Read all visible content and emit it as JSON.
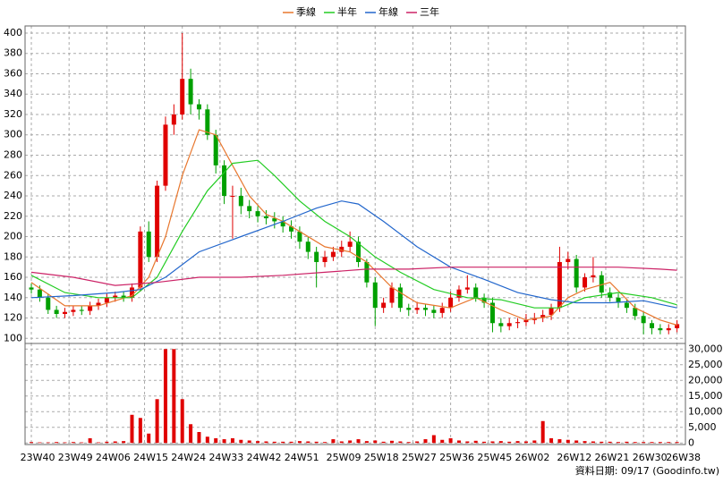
{
  "chart_data": [
    {
      "type": "candlestick",
      "up_color": "#e00000",
      "down_color": "#00a000",
      "xlim": [
        -1.5,
        156
      ],
      "ylim": [
        95,
        407
      ],
      "xticks": [
        0,
        9,
        18,
        27,
        36,
        45,
        54,
        63,
        73,
        82,
        91,
        100,
        109,
        118,
        128,
        137,
        146,
        154
      ],
      "yticks": [
        100,
        120,
        140,
        160,
        180,
        200,
        220,
        240,
        260,
        280,
        300,
        320,
        340,
        360,
        380,
        400
      ],
      "grid": true,
      "legend": "top",
      "x": [
        0,
        2,
        4,
        6,
        8,
        10,
        12,
        14,
        16,
        18,
        20,
        22,
        24,
        26,
        28,
        30,
        32,
        34,
        36,
        38,
        40,
        42,
        44,
        46,
        48,
        50,
        52,
        54,
        56,
        58,
        60,
        62,
        64,
        66,
        68,
        70,
        72,
        74,
        76,
        78,
        80,
        82,
        84,
        86,
        88,
        90,
        92,
        94,
        96,
        98,
        100,
        102,
        104,
        106,
        108,
        110,
        112,
        114,
        116,
        118,
        120,
        122,
        124,
        126,
        128,
        130,
        132,
        134,
        136,
        138,
        140,
        142,
        144,
        146,
        148,
        150,
        152,
        154
      ],
      "open": [
        150,
        148,
        140,
        128,
        124,
        126,
        128,
        127,
        132,
        135,
        140,
        142,
        140,
        150,
        205,
        180,
        250,
        310,
        320,
        355,
        330,
        325,
        300,
        270,
        240,
        240,
        230,
        225,
        220,
        218,
        215,
        210,
        205,
        195,
        185,
        175,
        180,
        185,
        190,
        195,
        175,
        155,
        130,
        135,
        150,
        130,
        128,
        130,
        128,
        125,
        130,
        140,
        148,
        150,
        140,
        135,
        115,
        112,
        115,
        116,
        118,
        120,
        123,
        130,
        175,
        178,
        150,
        160,
        162,
        145,
        140,
        135,
        130,
        122,
        115,
        110,
        108,
        110
      ],
      "high": [
        154,
        152,
        144,
        132,
        130,
        132,
        132,
        136,
        139,
        144,
        146,
        146,
        154,
        210,
        215,
        255,
        318,
        330,
        400,
        365,
        335,
        330,
        305,
        275,
        250,
        248,
        236,
        230,
        226,
        224,
        220,
        216,
        210,
        200,
        190,
        186,
        190,
        196,
        205,
        200,
        178,
        160,
        140,
        155,
        154,
        134,
        136,
        134,
        132,
        135,
        146,
        152,
        162,
        154,
        144,
        140,
        120,
        120,
        120,
        124,
        125,
        128,
        134,
        190,
        185,
        182,
        164,
        180,
        166,
        150,
        144,
        138,
        134,
        126,
        118,
        114,
        114,
        118
      ],
      "low": [
        144,
        136,
        124,
        120,
        120,
        122,
        123,
        123,
        128,
        131,
        136,
        136,
        136,
        146,
        175,
        175,
        245,
        300,
        315,
        320,
        315,
        295,
        262,
        232,
        198,
        222,
        218,
        214,
        212,
        208,
        204,
        198,
        188,
        178,
        150,
        170,
        176,
        180,
        185,
        170,
        150,
        112,
        125,
        130,
        126,
        122,
        124,
        122,
        120,
        120,
        126,
        136,
        144,
        136,
        130,
        106,
        106,
        108,
        110,
        112,
        114,
        116,
        118,
        126,
        168,
        145,
        146,
        155,
        140,
        136,
        130,
        125,
        118,
        104,
        104,
        104,
        104,
        106
      ],
      "close": [
        148,
        140,
        128,
        124,
        126,
        128,
        127,
        132,
        135,
        140,
        142,
        140,
        150,
        205,
        180,
        250,
        310,
        320,
        355,
        330,
        325,
        300,
        270,
        240,
        240,
        230,
        225,
        220,
        218,
        215,
        210,
        205,
        195,
        185,
        175,
        180,
        185,
        190,
        195,
        175,
        155,
        130,
        135,
        150,
        130,
        128,
        130,
        128,
        125,
        130,
        140,
        148,
        150,
        140,
        135,
        115,
        112,
        115,
        116,
        118,
        120,
        123,
        130,
        175,
        178,
        150,
        160,
        162,
        145,
        140,
        135,
        130,
        122,
        115,
        110,
        108,
        110,
        114
      ],
      "series": [
        {
          "name": "季線",
          "color": "#e8772e",
          "x": [
            0,
            8,
            16,
            24,
            28,
            32,
            36,
            40,
            44,
            48,
            52,
            56,
            60,
            64,
            70,
            76,
            80,
            86,
            92,
            100,
            106,
            112,
            118,
            124,
            128,
            132,
            138,
            144,
            150,
            154
          ],
          "values": [
            155,
            132,
            132,
            142,
            160,
            200,
            260,
            305,
            300,
            270,
            240,
            222,
            215,
            205,
            190,
            185,
            175,
            150,
            135,
            130,
            140,
            128,
            118,
            122,
            140,
            148,
            155,
            130,
            118,
            113
          ]
        },
        {
          "name": "半年",
          "color": "#22cc22",
          "x": [
            0,
            8,
            16,
            24,
            30,
            36,
            42,
            48,
            54,
            58,
            64,
            70,
            76,
            82,
            88,
            96,
            104,
            112,
            120,
            126,
            132,
            140,
            148,
            154
          ],
          "values": [
            162,
            145,
            140,
            140,
            160,
            205,
            245,
            272,
            275,
            260,
            235,
            215,
            200,
            180,
            165,
            148,
            140,
            138,
            130,
            130,
            140,
            145,
            140,
            133
          ]
        },
        {
          "name": "年線",
          "color": "#2266cc",
          "x": [
            0,
            10,
            20,
            26,
            32,
            40,
            50,
            60,
            68,
            74,
            78,
            84,
            92,
            100,
            108,
            116,
            124,
            130,
            138,
            146,
            154
          ],
          "values": [
            140,
            142,
            145,
            148,
            160,
            185,
            200,
            215,
            228,
            235,
            232,
            215,
            190,
            170,
            158,
            145,
            138,
            135,
            135,
            137,
            130
          ]
        },
        {
          "name": "三年",
          "color": "#cc2266",
          "x": [
            0,
            10,
            20,
            30,
            40,
            50,
            60,
            70,
            80,
            90,
            100,
            110,
            120,
            130,
            140,
            150,
            154
          ],
          "values": [
            165,
            160,
            152,
            155,
            160,
            160,
            162,
            165,
            168,
            168,
            170,
            170,
            170,
            170,
            170,
            168,
            167
          ]
        }
      ]
    },
    {
      "type": "bar",
      "color": "#e00000",
      "xlim": [
        -1.5,
        156
      ],
      "ylim": [
        -500,
        31800
      ],
      "xticks": [
        {
          "value": 0,
          "label": "23W40"
        },
        {
          "value": 9,
          "label": "23W49"
        },
        {
          "value": 18,
          "label": "24W06"
        },
        {
          "value": 27,
          "label": "24W15"
        },
        {
          "value": 36,
          "label": "24W24"
        },
        {
          "value": 45,
          "label": "24W33"
        },
        {
          "value": 54,
          "label": "24W42"
        },
        {
          "value": 63,
          "label": "24W51"
        },
        {
          "value": 73,
          "label": "25W09"
        },
        {
          "value": 82,
          "label": "25W18"
        },
        {
          "value": 91,
          "label": "25W27"
        },
        {
          "value": 100,
          "label": "25W36"
        },
        {
          "value": 109,
          "label": "25W45"
        },
        {
          "value": 118,
          "label": "26W02"
        },
        {
          "value": 128,
          "label": "26W12"
        },
        {
          "value": 137,
          "label": "26W21"
        },
        {
          "value": 146,
          "label": "26W30"
        },
        {
          "value": 154,
          "label": "26W38"
        }
      ],
      "yticks": [
        0,
        {
          "value": 5000,
          "label": "5,000"
        },
        {
          "value": 10000,
          "label": "10,000"
        },
        {
          "value": 15000,
          "label": "15,000"
        },
        {
          "value": 20000,
          "label": "20,000"
        },
        {
          "value": 25000,
          "label": "25,000"
        },
        {
          "value": 30000,
          "label": "30,000"
        }
      ],
      "grid": true,
      "x": [
        0,
        2,
        4,
        6,
        8,
        10,
        12,
        14,
        16,
        18,
        20,
        22,
        24,
        26,
        28,
        30,
        32,
        34,
        36,
        38,
        40,
        42,
        44,
        46,
        48,
        50,
        52,
        54,
        56,
        58,
        60,
        62,
        64,
        66,
        68,
        70,
        72,
        74,
        76,
        78,
        80,
        82,
        84,
        86,
        88,
        90,
        92,
        94,
        96,
        98,
        100,
        102,
        104,
        106,
        108,
        110,
        112,
        114,
        116,
        118,
        120,
        122,
        124,
        126,
        128,
        130,
        132,
        134,
        136,
        138,
        140,
        142,
        144,
        146,
        148,
        150,
        152,
        154
      ],
      "values": [
        300,
        200,
        200,
        300,
        200,
        300,
        200,
        1500,
        200,
        400,
        500,
        600,
        9000,
        8000,
        3000,
        14000,
        30000,
        30000,
        14000,
        6000,
        3500,
        2000,
        1500,
        1200,
        1500,
        1000,
        800,
        600,
        500,
        400,
        400,
        400,
        600,
        500,
        400,
        300,
        1200,
        500,
        800,
        1200,
        600,
        800,
        400,
        700,
        500,
        300,
        500,
        1200,
        2500,
        1000,
        1500,
        800,
        500,
        700,
        400,
        500,
        600,
        400,
        600,
        500,
        800,
        7000,
        1500,
        1200,
        1000,
        800,
        600,
        500,
        400,
        400,
        300,
        400,
        300,
        300,
        300,
        300,
        300,
        300
      ],
      "note": "資料日期: 09/17 (Goodinfo.tw)"
    }
  ]
}
